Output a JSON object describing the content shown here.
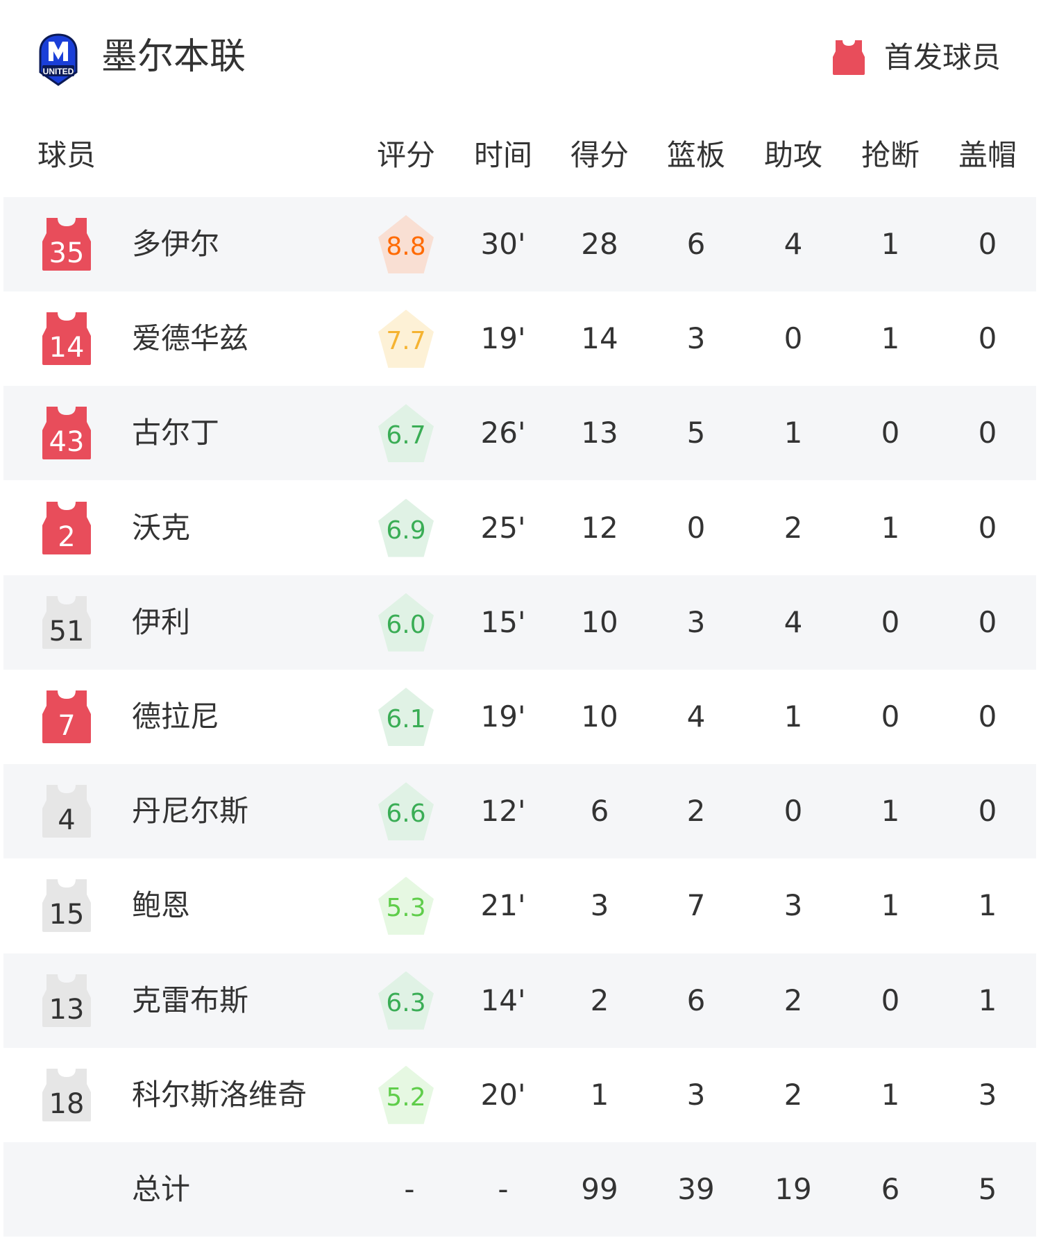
{
  "header": {
    "team_name": "墨尔本联",
    "logo": "melbourne-united-logo",
    "legend_label": "首发球员",
    "legend_icon": "red-jersey-icon"
  },
  "colors": {
    "starter_jersey": "#e84d5b",
    "bench_jersey": "#e6e6e6",
    "row_shade": "#f5f6f8"
  },
  "columns": [
    "球员",
    "评分",
    "时间",
    "得分",
    "篮板",
    "助攻",
    "抢断",
    "盖帽"
  ],
  "players": [
    {
      "number": "35",
      "name": "多伊尔",
      "starter": true,
      "rating": "8.8",
      "rating_tier": "orange",
      "time": "30'",
      "points": "28",
      "rebounds": "6",
      "assists": "4",
      "steals": "1",
      "blocks": "0"
    },
    {
      "number": "14",
      "name": "爱德华兹",
      "starter": true,
      "rating": "7.7",
      "rating_tier": "yellow",
      "time": "19'",
      "points": "14",
      "rebounds": "3",
      "assists": "0",
      "steals": "1",
      "blocks": "0"
    },
    {
      "number": "43",
      "name": "古尔丁",
      "starter": true,
      "rating": "6.7",
      "rating_tier": "green",
      "time": "26'",
      "points": "13",
      "rebounds": "5",
      "assists": "1",
      "steals": "0",
      "blocks": "0"
    },
    {
      "number": "2",
      "name": "沃克",
      "starter": true,
      "rating": "6.9",
      "rating_tier": "green",
      "time": "25'",
      "points": "12",
      "rebounds": "0",
      "assists": "2",
      "steals": "1",
      "blocks": "0"
    },
    {
      "number": "51",
      "name": "伊利",
      "starter": false,
      "rating": "6.0",
      "rating_tier": "green",
      "time": "15'",
      "points": "10",
      "rebounds": "3",
      "assists": "4",
      "steals": "0",
      "blocks": "0"
    },
    {
      "number": "7",
      "name": "德拉尼",
      "starter": true,
      "rating": "6.1",
      "rating_tier": "green",
      "time": "19'",
      "points": "10",
      "rebounds": "4",
      "assists": "1",
      "steals": "0",
      "blocks": "0"
    },
    {
      "number": "4",
      "name": "丹尼尔斯",
      "starter": false,
      "rating": "6.6",
      "rating_tier": "green",
      "time": "12'",
      "points": "6",
      "rebounds": "2",
      "assists": "0",
      "steals": "1",
      "blocks": "0"
    },
    {
      "number": "15",
      "name": "鲍恩",
      "starter": false,
      "rating": "5.3",
      "rating_tier": "light-green",
      "time": "21'",
      "points": "3",
      "rebounds": "7",
      "assists": "3",
      "steals": "1",
      "blocks": "1"
    },
    {
      "number": "13",
      "name": "克雷布斯",
      "starter": false,
      "rating": "6.3",
      "rating_tier": "green",
      "time": "14'",
      "points": "2",
      "rebounds": "6",
      "assists": "2",
      "steals": "0",
      "blocks": "1"
    },
    {
      "number": "18",
      "name": "科尔斯洛维奇",
      "starter": false,
      "rating": "5.2",
      "rating_tier": "light-green",
      "time": "20'",
      "points": "1",
      "rebounds": "3",
      "assists": "2",
      "steals": "1",
      "blocks": "3"
    }
  ],
  "totals": {
    "label": "总计",
    "rating": "-",
    "time": "-",
    "points": "99",
    "rebounds": "39",
    "assists": "19",
    "steals": "6",
    "blocks": "5"
  },
  "rating_colors": {
    "orange": {
      "text": "#ff6a00",
      "bg": "#f9dfd3"
    },
    "yellow": {
      "text": "#f5b331",
      "bg": "#fdf1d6"
    },
    "green": {
      "text": "#3aad55",
      "bg": "#e0f2e5"
    },
    "light-green": {
      "text": "#5fcd4a",
      "bg": "#e6f8e2"
    }
  }
}
